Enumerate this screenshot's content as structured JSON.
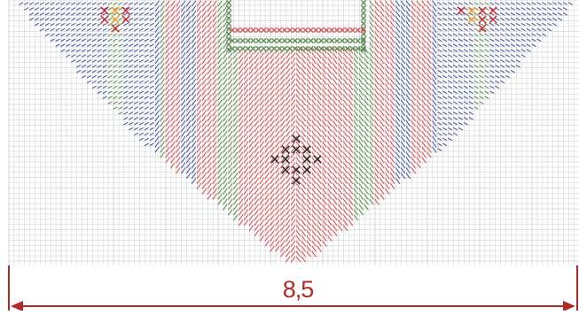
{
  "measure": {
    "label": "8,5"
  },
  "colors": {
    "grid_minor": "#d5d5d5",
    "grid_major": "#bdbdbd",
    "stitch_blue": "#4a5aa8",
    "stitch_red": "#d9545a",
    "stitch_green": "#5e8f55",
    "cross_red": "#c8262c",
    "cross_orange": "#e8a020",
    "cross_black": "#222222",
    "dimension": "#b02a2a"
  },
  "icons": [
    "cross-stitch-icon",
    "dimension-arrow-icon"
  ]
}
